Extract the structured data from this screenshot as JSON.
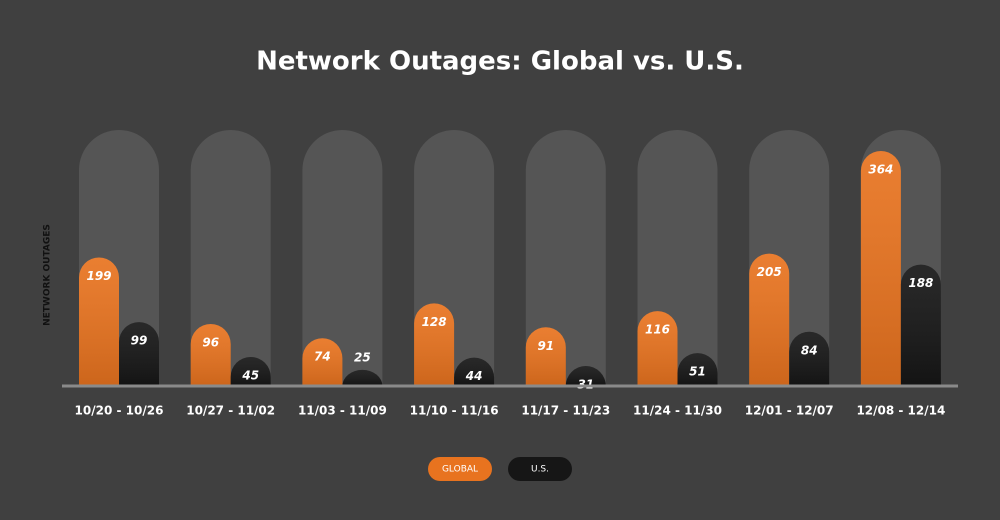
{
  "chart_data": {
    "type": "bar",
    "title": "Network Outages: Global vs. U.S.",
    "y_label": "NETWORK OUTAGES",
    "categories": [
      "10/20 - 10/26",
      "10/27 - 11/02",
      "11/03 - 11/09",
      "11/10 - 11/16",
      "11/17 - 11/23",
      "11/24 - 11/30",
      "12/01 - 12/07",
      "12/08 - 12/14"
    ],
    "series": [
      {
        "name": "GLOBAL",
        "color": "#e8731f",
        "values": [
          199,
          96,
          74,
          128,
          91,
          116,
          205,
          364
        ]
      },
      {
        "name": "U.S.",
        "color": "#161616",
        "values": [
          99,
          45,
          25,
          44,
          31,
          51,
          84,
          188
        ]
      }
    ]
  }
}
